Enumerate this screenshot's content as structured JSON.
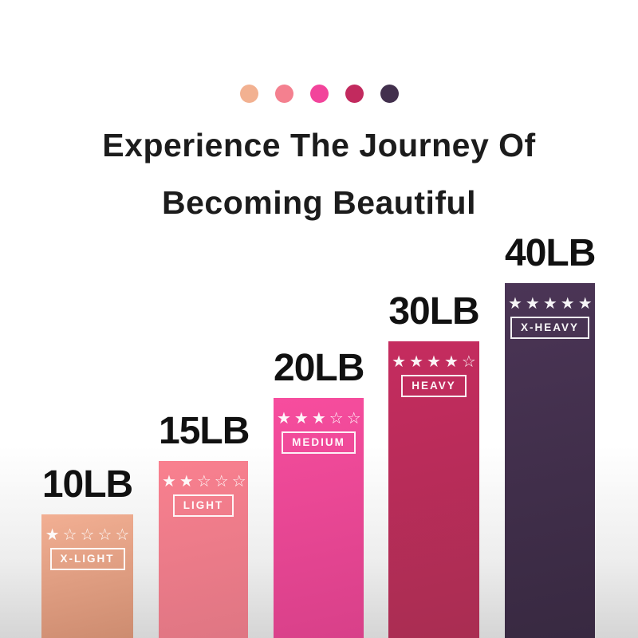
{
  "palette_dots": [
    {
      "name": "x-light-dot",
      "color": "#F2B191"
    },
    {
      "name": "light-dot",
      "color": "#F4808F"
    },
    {
      "name": "medium-dot",
      "color": "#F2449B"
    },
    {
      "name": "heavy-dot",
      "color": "#C22A5E"
    },
    {
      "name": "x-heavy-dot",
      "color": "#42304D"
    }
  ],
  "title": {
    "line1": "Experience The Journey Of",
    "line2": "Becoming Beautiful"
  },
  "text_color": "#1C1C1C",
  "bars": [
    {
      "weight": "10LB",
      "level": "X-LIGHT",
      "stars": "★☆☆☆☆",
      "rating": 1,
      "color_top": "#F2AF93",
      "color_bottom": "#CD8C70"
    },
    {
      "weight": "15LB",
      "level": "LIGHT",
      "stars": "★★☆☆☆",
      "rating": 2,
      "color_top": "#F9808F",
      "color_bottom": "#DF7683"
    },
    {
      "weight": "20LB",
      "level": "MEDIUM",
      "stars": "★★★☆☆",
      "rating": 3,
      "color_top": "#F74D9E",
      "color_bottom": "#D84089"
    },
    {
      "weight": "30LB",
      "level": "HEAVY",
      "stars": "★★★★☆",
      "rating": 4,
      "color_top": "#C52C5F",
      "color_bottom": "#A92D52"
    },
    {
      "weight": "40LB",
      "level": "X-HEAVY",
      "stars": "★★★★★",
      "rating": 5,
      "color_top": "#4B3556",
      "color_bottom": "#382941"
    }
  ],
  "chart_data": {
    "type": "bar",
    "title": "Experience The Journey Of Becoming Beautiful",
    "categories": [
      "X-LIGHT",
      "LIGHT",
      "MEDIUM",
      "HEAVY",
      "X-HEAVY"
    ],
    "values": [
      10,
      15,
      20,
      30,
      40
    ],
    "value_labels": [
      "10LB",
      "15LB",
      "20LB",
      "30LB",
      "40LB"
    ],
    "unit": "LB",
    "star_ratings": [
      1,
      2,
      3,
      4,
      5
    ],
    "bar_colors": [
      "#EFA98C",
      "#F87D8E",
      "#F2479B",
      "#C22A5C",
      "#463250"
    ],
    "xlabel": "",
    "ylabel": "",
    "grid": false,
    "legend_position": "none",
    "axes_visible": false
  }
}
